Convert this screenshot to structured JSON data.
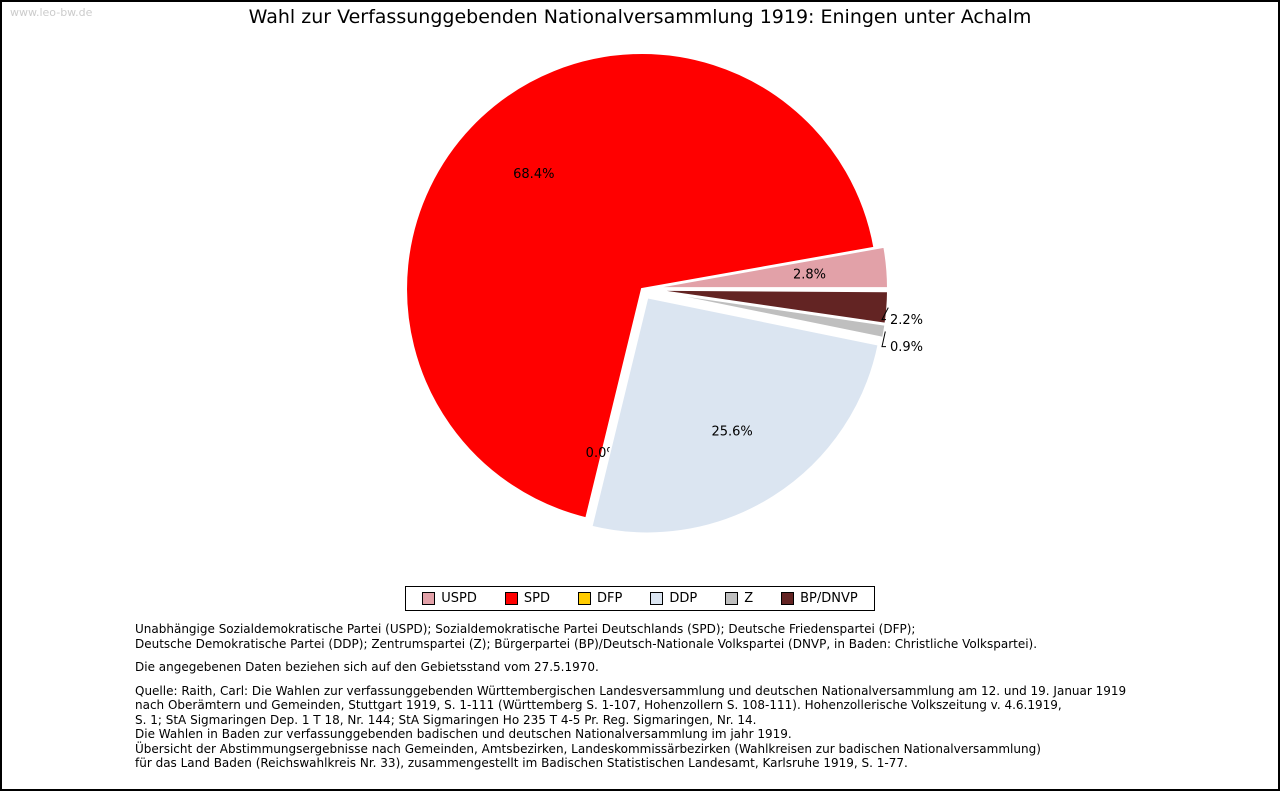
{
  "watermark": "www.leo-bw.de",
  "title": "Wahl zur Verfassunggebenden Nationalversammlung 1919: Eningen unter Achalm",
  "chart_data": {
    "type": "pie",
    "title": "Wahl zur Verfassunggebenden Nationalversammlung 1919: Eningen unter Achalm",
    "value_unit": "percent",
    "direction": "counterclockwise",
    "start_angle_deg": 0,
    "legend_position": "bottom",
    "exploded_all_but_largest": true,
    "slices": [
      {
        "label": "USPD",
        "value": 2.8,
        "display": "2.8%",
        "color": "#e2a1a8"
      },
      {
        "label": "SPD",
        "value": 68.4,
        "display": "68.4%",
        "color": "#ff0000"
      },
      {
        "label": "DFP",
        "value": 0.0,
        "display": "0.0%",
        "color": "#ffcc00"
      },
      {
        "label": "DDP",
        "value": 25.6,
        "display": "25.6%",
        "color": "#dbe5f1"
      },
      {
        "label": "Z",
        "value": 0.9,
        "display": "0.9%",
        "color": "#bfbfbf"
      },
      {
        "label": "BP/DNVP",
        "value": 2.2,
        "display": "2.2%",
        "color": "#632423"
      }
    ]
  },
  "notes": {
    "parties_line1": "Unabhängige Sozialdemokratische Partei (USPD); Sozialdemokratische Partei Deutschlands (SPD); Deutsche Friedenspartei (DFP);",
    "parties_line2": "Deutsche Demokratische Partei (DDP); Zentrumspartei (Z); Bürgerpartei (BP)/Deutsch-Nationale Volkspartei (DNVP, in Baden: Christliche Volkspartei).",
    "stand": "Die angegebenen Daten beziehen sich auf den Gebietsstand vom 27.5.1970.",
    "source_lines": [
      "Quelle: Raith, Carl: Die Wahlen zur verfassunggebenden Württembergischen Landesversammlung und deutschen Nationalversammlung am 12. und 19. Januar 1919",
      "nach Oberämtern und Gemeinden, Stuttgart 1919, S. 1-111 (Württemberg S. 1-107, Hohenzollern S. 108-111). Hohenzollerische Volkszeitung v. 4.6.1919,",
      "S. 1; StA Sigmaringen Dep. 1 T 18, Nr. 144; StA Sigmaringen Ho 235 T 4-5 Pr. Reg. Sigmaringen, Nr. 14.",
      "Die Wahlen in Baden zur verfassunggebenden badischen und deutschen Nationalversammlung im jahr 1919.",
      "Übersicht der Abstimmungsergebnisse nach Gemeinden, Amtsbezirken, Landeskommissärbezirken (Wahlkreisen zur badischen Nationalversammlung)",
      "für das Land Baden (Reichswahlkreis Nr. 33), zusammengestellt im Badischen Statistischen Landesamt, Karlsruhe 1919, S. 1-77."
    ]
  }
}
